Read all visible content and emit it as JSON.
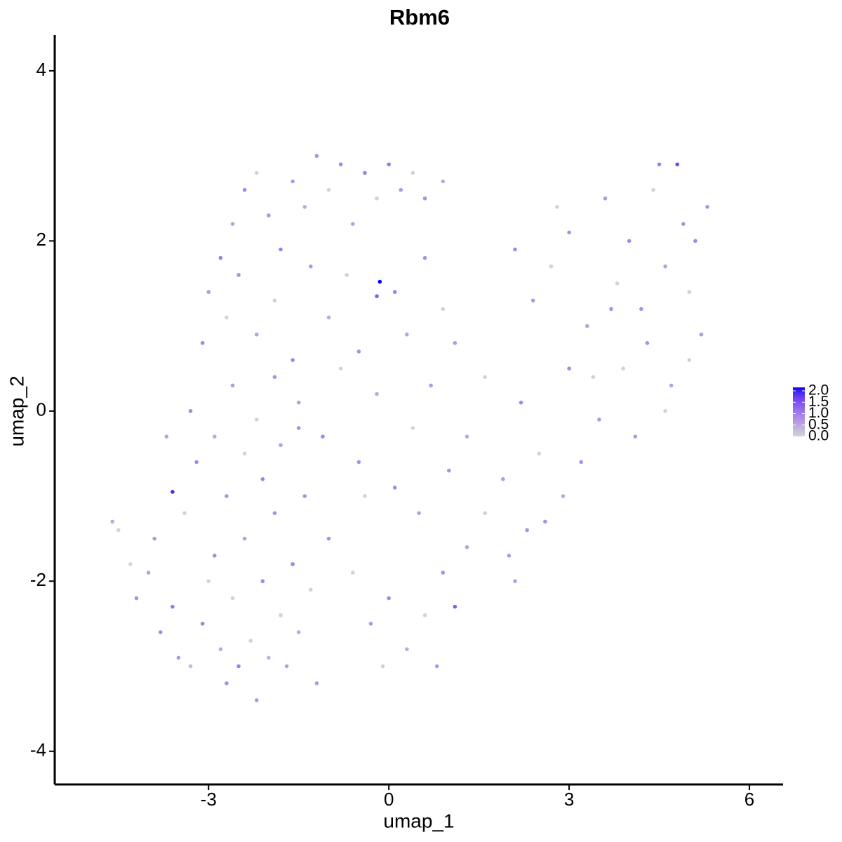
{
  "chart_data": {
    "type": "scatter",
    "title": "Rbm6",
    "x_label": "umap_1",
    "y_label": "umap_2",
    "xlim": [
      -5.56,
      6.56
    ],
    "ylim": [
      -4.39,
      4.42
    ],
    "xticks": [
      -3,
      0,
      3,
      6
    ],
    "yticks": [
      -4,
      -2,
      0,
      2,
      4
    ],
    "colors": [
      "lightgrey",
      "blue"
    ],
    "color_lim": [
      0,
      2.15
    ],
    "colorbar_ticks": [
      {
        "value": 0,
        "label": "0.0"
      },
      {
        "value": 0.5,
        "label": "0.5"
      },
      {
        "value": 1,
        "label": "1.0"
      },
      {
        "value": 1.5,
        "label": "1.5"
      },
      {
        "value": 2,
        "label": "2.0"
      }
    ],
    "x": [
      -4.2,
      -4.0,
      -3.8,
      -3.6,
      -3.5,
      -3.3,
      -3.1,
      -3.0,
      -2.9,
      -2.8,
      -2.7,
      -2.6,
      -2.5,
      -2.4,
      -2.3,
      -2.2,
      -2.1,
      -2.0,
      -1.9,
      -1.8,
      -1.7,
      -1.6,
      -1.5,
      -1.4,
      -1.3,
      -1.2,
      -4.6,
      -4.5,
      -4.3,
      -3.6,
      -3.9,
      -3.4,
      -3.2,
      -2.9,
      -2.7,
      -2.4,
      -2.1,
      -1.8,
      -1.5,
      -3.7,
      -3.3,
      -3.1,
      -3.0,
      -2.8,
      -2.6,
      -2.4,
      -2.2,
      -2.0,
      -1.8,
      -1.6,
      -1.4,
      -1.2,
      -1.0,
      -0.8,
      -0.6,
      -0.4,
      -0.2,
      0.0,
      0.2,
      0.4,
      0.6,
      0.9,
      -2.7,
      -2.5,
      -2.2,
      -1.9,
      -1.6,
      -1.3,
      -1.0,
      -0.7,
      -0.5,
      -0.2,
      -0.15,
      0.1,
      0.3,
      0.6,
      0.9,
      1.1,
      -2.6,
      -2.2,
      -1.9,
      -1.5,
      -1.1,
      -0.8,
      -0.5,
      -0.2,
      0.1,
      0.4,
      0.7,
      1.0,
      1.3,
      1.6,
      1.9,
      2.2,
      2.5,
      -1.0,
      -0.6,
      -0.3,
      0.0,
      0.3,
      0.6,
      0.9,
      1.1,
      1.3,
      1.6,
      2.0,
      2.3,
      0.5,
      -0.4,
      0.8,
      -0.1,
      2.1,
      2.4,
      2.7,
      3.0,
      3.3,
      3.6,
      3.8,
      4.0,
      4.2,
      4.4,
      4.5,
      4.6,
      4.8,
      4.9,
      5.0,
      5.1,
      5.2,
      5.3,
      5.0,
      4.7,
      4.3,
      3.9,
      3.5,
      3.2,
      2.9,
      2.6,
      3.4,
      4.1,
      4.6,
      3.0,
      2.8,
      3.7,
      2.1
    ],
    "y": [
      -2.2,
      -1.9,
      -2.6,
      -2.3,
      -2.9,
      -3.0,
      -2.5,
      -2.0,
      -1.7,
      -2.8,
      -3.2,
      -2.2,
      -3.0,
      -1.5,
      -2.7,
      -3.4,
      -2.0,
      -2.9,
      -1.2,
      -2.4,
      -3.0,
      -1.8,
      -2.6,
      -1.0,
      -2.1,
      -3.2,
      -1.3,
      -1.4,
      -1.8,
      -0.95,
      -1.5,
      -1.2,
      -0.6,
      -0.3,
      -1.0,
      -0.5,
      -0.8,
      -0.4,
      -0.2,
      -0.3,
      0.0,
      0.8,
      1.4,
      1.8,
      2.2,
      2.6,
      2.8,
      2.3,
      1.9,
      2.7,
      2.4,
      3.0,
      2.6,
      2.9,
      2.2,
      2.8,
      2.5,
      2.9,
      2.6,
      2.8,
      2.5,
      2.7,
      1.1,
      1.6,
      0.9,
      1.3,
      0.6,
      1.7,
      1.1,
      1.6,
      0.7,
      1.35,
      1.52,
      1.4,
      0.9,
      1.8,
      1.2,
      0.8,
      0.3,
      -0.1,
      0.4,
      0.1,
      -0.3,
      0.5,
      -0.6,
      0.2,
      -0.9,
      -0.2,
      0.3,
      -0.7,
      -0.3,
      0.4,
      -0.8,
      0.1,
      -0.5,
      -1.5,
      -1.9,
      -2.5,
      -2.2,
      -2.8,
      -2.4,
      -1.9,
      -2.3,
      -1.6,
      -1.2,
      -1.7,
      -1.4,
      -1.2,
      -1.0,
      -3.0,
      -3.0,
      1.9,
      1.3,
      1.7,
      2.1,
      1.0,
      2.5,
      1.5,
      2.0,
      1.2,
      2.6,
      2.9,
      1.7,
      2.9,
      2.2,
      1.4,
      2.0,
      0.9,
      2.4,
      0.6,
      0.3,
      0.8,
      0.5,
      -0.1,
      -0.6,
      -1.0,
      -1.3,
      0.4,
      -0.3,
      0.0,
      0.5,
      2.4,
      1.2,
      -2.0
    ],
    "color_values": [
      0.8,
      0.6,
      0.9,
      1.1,
      0.7,
      0.3,
      1.0,
      0,
      0.9,
      0.5,
      0.8,
      0,
      1.0,
      0.6,
      0,
      0.7,
      0.9,
      0.4,
      0.8,
      0,
      0.6,
      1.0,
      0.5,
      0.8,
      0,
      0.7,
      0.5,
      0,
      0,
      1.9,
      0.7,
      0,
      0.9,
      0.5,
      0.8,
      0,
      1.0,
      0.6,
      0.8,
      0.6,
      0.9,
      0.9,
      0.7,
      1.0,
      0.6,
      0.9,
      0,
      0.8,
      1.0,
      0.7,
      0.5,
      0.8,
      0,
      0.9,
      0.6,
      1.0,
      0,
      1.1,
      0.7,
      0,
      0.8,
      0.5,
      0,
      0.8,
      0.6,
      0,
      0.9,
      0.7,
      0.5,
      0,
      0.8,
      1.4,
      2.15,
      1.0,
      0.6,
      0.8,
      0,
      0.7,
      0.7,
      0,
      0.8,
      0.6,
      0.9,
      0,
      0.8,
      0.5,
      0.9,
      0,
      0.7,
      0.8,
      0.5,
      0,
      0.7,
      0.9,
      0,
      0.8,
      0,
      0.7,
      0.9,
      0.5,
      0,
      0.8,
      1.4,
      0.6,
      0,
      0.7,
      0.8,
      0.6,
      0,
      0.7,
      0,
      0.9,
      0.7,
      0,
      0.8,
      0.6,
      0.7,
      0,
      0.9,
      0.8,
      0,
      1.0,
      0.6,
      1.6,
      0.8,
      0,
      0.9,
      0.7,
      0.8,
      0,
      0.6,
      0.8,
      0,
      0.7,
      0.8,
      0.5,
      0.8,
      0,
      0.7,
      0,
      0.9,
      0,
      0.8,
      0.6
    ]
  }
}
